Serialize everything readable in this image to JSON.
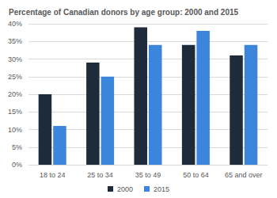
{
  "chart_data": {
    "type": "bar",
    "title": "Percentage of Canadian donors by age group: 2000 and 2015",
    "categories": [
      "18 to 24",
      "25 to 34",
      "35 to 49",
      "50 to 64",
      "65 and over"
    ],
    "series": [
      {
        "name": "2000",
        "color": "#1d2b3a",
        "values": [
          20,
          29,
          39,
          34,
          31
        ]
      },
      {
        "name": "2015",
        "color": "#3b85dc",
        "values": [
          11,
          25,
          34,
          38,
          34
        ]
      }
    ],
    "ylim": [
      0,
      40
    ],
    "yticks": [
      {
        "value": 0,
        "label": "0%"
      },
      {
        "value": 5,
        "label": "5%"
      },
      {
        "value": 10,
        "label": "10%"
      },
      {
        "value": 15,
        "label": "15%"
      },
      {
        "value": 20,
        "label": "20%"
      },
      {
        "value": 25,
        "label": "25%"
      },
      {
        "value": 30,
        "label": "30%"
      },
      {
        "value": 35,
        "label": "35%"
      },
      {
        "value": 40,
        "label": "40%"
      }
    ],
    "grid": true,
    "legend": "bottom"
  }
}
